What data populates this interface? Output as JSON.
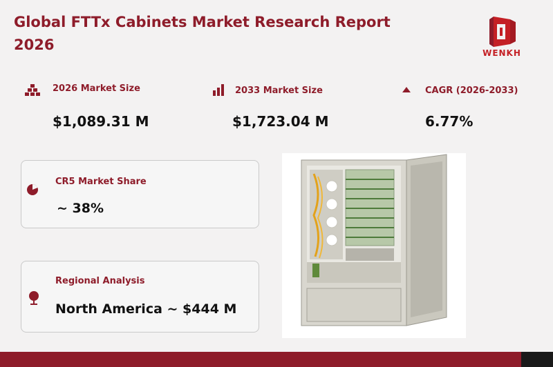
{
  "header": {
    "title": "Global FTTx Cabinets Market Research Report 2026",
    "logo_text": "WENKH"
  },
  "stats": {
    "market_2026": {
      "label": "2026 Market Size",
      "value": "$1,089.31 M",
      "icon": "pyramid-icon"
    },
    "market_2033": {
      "label": "2033 Market Size",
      "value": "$1,723.04 M",
      "icon": "bar-chart-icon"
    },
    "cagr": {
      "label": "CAGR (2026-2033)",
      "value": "6.77%",
      "icon": "triangle-up-icon"
    }
  },
  "cards": {
    "cr5": {
      "label": "CR5 Market Share",
      "value": "~ 38%",
      "icon": "pie-chart-icon"
    },
    "regional": {
      "label": "Regional Analysis",
      "value": "North America ~ $444 M",
      "icon": "globe-icon"
    }
  },
  "colors": {
    "accent": "#8e1c2a",
    "logo_red": "#c42025",
    "background": "#f3f2f2",
    "footer_dark": "#1a1a1a"
  }
}
